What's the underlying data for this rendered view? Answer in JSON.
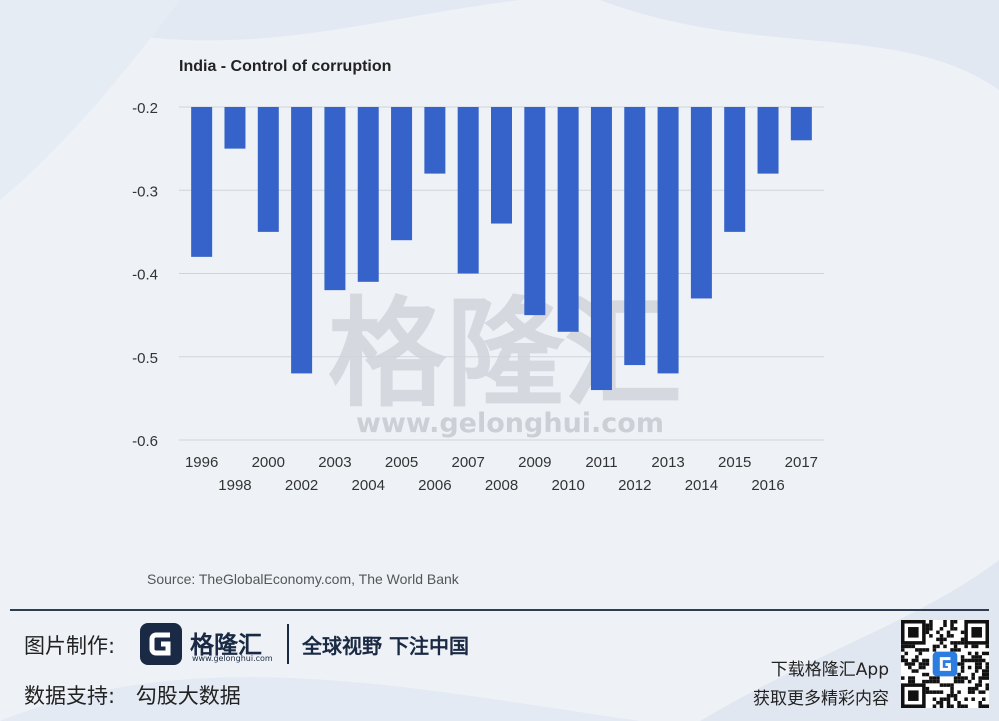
{
  "chart_data": {
    "type": "bar",
    "title": "India - Control of corruption",
    "categories": [
      "1996",
      "1998",
      "2000",
      "2002",
      "2003",
      "2004",
      "2005",
      "2006",
      "2007",
      "2008",
      "2009",
      "2010",
      "2011",
      "2012",
      "2013",
      "2014",
      "2015",
      "2016",
      "2017"
    ],
    "values": [
      -0.38,
      -0.25,
      -0.35,
      -0.52,
      -0.42,
      -0.41,
      -0.36,
      -0.28,
      -0.4,
      -0.34,
      -0.45,
      -0.47,
      -0.54,
      -0.51,
      -0.52,
      -0.43,
      -0.35,
      -0.28,
      -0.24
    ],
    "ylim": [
      -0.6,
      -0.2
    ],
    "yticks": [
      "-0.2",
      "-0.3",
      "-0.4",
      "-0.5",
      "-0.6"
    ],
    "ytick_values": [
      -0.2,
      -0.3,
      -0.4,
      -0.5,
      -0.6
    ],
    "xlabel": "",
    "ylabel": "",
    "bar_color": "#3563c9",
    "grid": true
  },
  "source": "Source: TheGlobalEconomy.com, The World Bank",
  "watermark": {
    "chinese": "格隆汇",
    "url": "www.gelonghui.com"
  },
  "footer": {
    "made_by_label": "图片制作:",
    "data_label": "数据支持:",
    "data_provider": "勾股大数据",
    "logo_name": "格隆汇",
    "logo_url": "www.gelonghui.com",
    "slogan": "全球视野 下注中国",
    "app_line1": "下载格隆汇App",
    "app_line2": "获取更多精彩内容"
  },
  "colors": {
    "accent": "#3563c9",
    "dark": "#1b2a44"
  }
}
